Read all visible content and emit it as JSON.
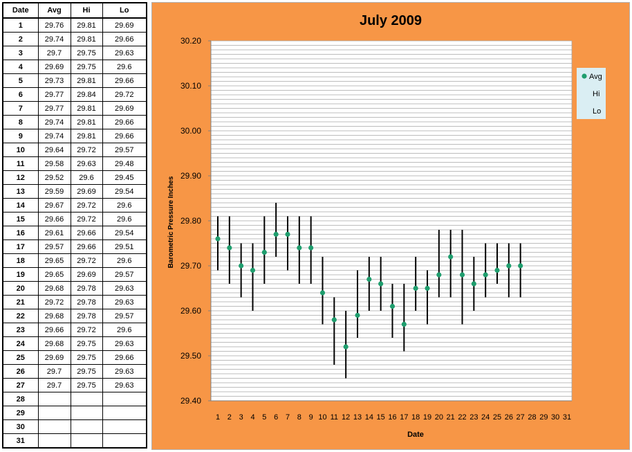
{
  "table": {
    "headers": [
      "Date",
      "Avg",
      "Hi",
      "Lo"
    ],
    "rows": [
      [
        "1",
        "29.76",
        "29.81",
        "29.69"
      ],
      [
        "2",
        "29.74",
        "29.81",
        "29.66"
      ],
      [
        "3",
        "29.7",
        "29.75",
        "29.63"
      ],
      [
        "4",
        "29.69",
        "29.75",
        "29.6"
      ],
      [
        "5",
        "29.73",
        "29.81",
        "29.66"
      ],
      [
        "6",
        "29.77",
        "29.84",
        "29.72"
      ],
      [
        "7",
        "29.77",
        "29.81",
        "29.69"
      ],
      [
        "8",
        "29.74",
        "29.81",
        "29.66"
      ],
      [
        "9",
        "29.74",
        "29.81",
        "29.66"
      ],
      [
        "10",
        "29.64",
        "29.72",
        "29.57"
      ],
      [
        "11",
        "29.58",
        "29.63",
        "29.48"
      ],
      [
        "12",
        "29.52",
        "29.6",
        "29.45"
      ],
      [
        "13",
        "29.59",
        "29.69",
        "29.54"
      ],
      [
        "14",
        "29.67",
        "29.72",
        "29.6"
      ],
      [
        "15",
        "29.66",
        "29.72",
        "29.6"
      ],
      [
        "16",
        "29.61",
        "29.66",
        "29.54"
      ],
      [
        "17",
        "29.57",
        "29.66",
        "29.51"
      ],
      [
        "18",
        "29.65",
        "29.72",
        "29.6"
      ],
      [
        "19",
        "29.65",
        "29.69",
        "29.57"
      ],
      [
        "20",
        "29.68",
        "29.78",
        "29.63"
      ],
      [
        "21",
        "29.72",
        "29.78",
        "29.63"
      ],
      [
        "22",
        "29.68",
        "29.78",
        "29.57"
      ],
      [
        "23",
        "29.66",
        "29.72",
        "29.6"
      ],
      [
        "24",
        "29.68",
        "29.75",
        "29.63"
      ],
      [
        "25",
        "29.69",
        "29.75",
        "29.66"
      ],
      [
        "26",
        "29.7",
        "29.75",
        "29.63"
      ],
      [
        "27",
        "29.7",
        "29.75",
        "29.63"
      ],
      [
        "28",
        "",
        "",
        ""
      ],
      [
        "29",
        "",
        "",
        ""
      ],
      [
        "30",
        "",
        "",
        ""
      ],
      [
        "31",
        "",
        "",
        ""
      ]
    ]
  },
  "colors": {
    "panel_bg": "#f79646",
    "plot_bg": "#ffffff",
    "grid": "#a6a6a6",
    "marker": "#1f9e6e",
    "range_line": "#000000",
    "legend_bg": "#daeef3"
  },
  "chart_data": {
    "type": "scatter",
    "title": "July 2009",
    "xlabel": "Date",
    "ylabel": "Barometric Pressure Inches",
    "x": [
      1,
      2,
      3,
      4,
      5,
      6,
      7,
      8,
      9,
      10,
      11,
      12,
      13,
      14,
      15,
      16,
      17,
      18,
      19,
      20,
      21,
      22,
      23,
      24,
      25,
      26,
      27
    ],
    "x_ticks": [
      "1",
      "2",
      "3",
      "4",
      "5",
      "6",
      "7",
      "8",
      "9",
      "10",
      "11",
      "12",
      "13",
      "14",
      "15",
      "16",
      "17",
      "18",
      "19",
      "20",
      "21",
      "22",
      "23",
      "24",
      "25",
      "26",
      "27",
      "28",
      "29",
      "30",
      "31"
    ],
    "y_ticks": [
      "30.20",
      "30.10",
      "30.00",
      "29.90",
      "29.80",
      "29.70",
      "29.60",
      "29.50",
      "29.40"
    ],
    "ylim": [
      29.4,
      30.2
    ],
    "y_minor_step": 0.01,
    "grid": true,
    "legend_position": "top-right",
    "series": [
      {
        "name": "Avg",
        "values": [
          29.76,
          29.74,
          29.7,
          29.69,
          29.73,
          29.77,
          29.77,
          29.74,
          29.74,
          29.64,
          29.58,
          29.52,
          29.59,
          29.67,
          29.66,
          29.61,
          29.57,
          29.65,
          29.65,
          29.68,
          29.72,
          29.68,
          29.66,
          29.68,
          29.69,
          29.7,
          29.7
        ]
      },
      {
        "name": "Hi",
        "values": [
          29.81,
          29.81,
          29.75,
          29.75,
          29.81,
          29.84,
          29.81,
          29.81,
          29.81,
          29.72,
          29.63,
          29.6,
          29.69,
          29.72,
          29.72,
          29.66,
          29.66,
          29.72,
          29.69,
          29.78,
          29.78,
          29.78,
          29.72,
          29.75,
          29.75,
          29.75,
          29.75
        ]
      },
      {
        "name": "Lo",
        "values": [
          29.69,
          29.66,
          29.63,
          29.6,
          29.66,
          29.72,
          29.69,
          29.66,
          29.66,
          29.57,
          29.48,
          29.45,
          29.54,
          29.6,
          29.6,
          29.54,
          29.51,
          29.6,
          29.57,
          29.63,
          29.63,
          29.57,
          29.6,
          29.63,
          29.66,
          29.63,
          29.63
        ]
      }
    ]
  }
}
